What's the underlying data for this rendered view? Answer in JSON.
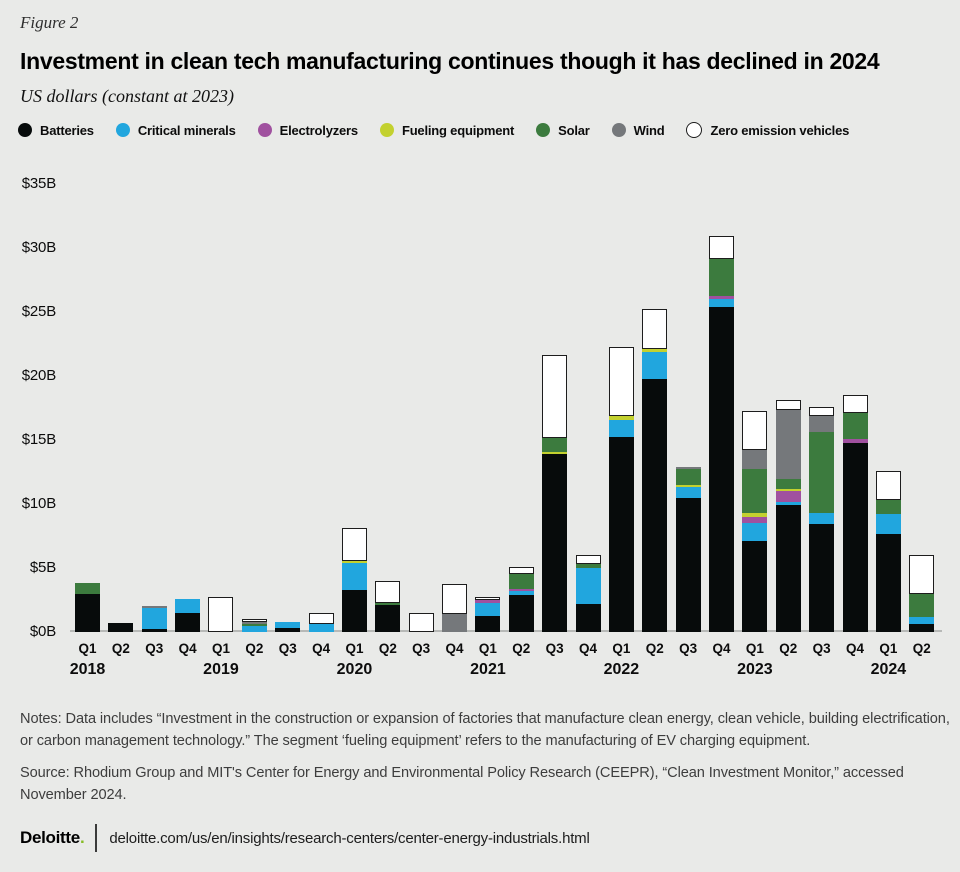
{
  "figure_label": "Figure 2",
  "title": "Investment in clean tech manufacturing continues though it has declined in 2024",
  "subtitle": "US dollars (constant at 2023)",
  "notes": "Notes: Data includes “Investment in the construction or expansion of factories that manufacture clean energy, clean vehicle, building electrification, or carbon management technology.” The segment ‘fueling equipment’ refers to the manufacturing of EV charging equipment.",
  "source": "Source: Rhodium Group and MIT's Center for Energy and Environmental Policy Research (CEEPR), “Clean Investment Monitor,” accessed November 2024.",
  "footer": {
    "brand": "Deloitte",
    "brand_dot": ".",
    "brand_dot_color": "#86bc25",
    "url": "deloitte.com/us/en/insights/research-centers/center-energy-industrials.html"
  },
  "colors": {
    "background": "#e9eae8",
    "axis_line": "#b7b9b7",
    "zev_outline": "#1d1d1d"
  },
  "chart_data": {
    "type": "stacked-bar",
    "unit": "USD billions (constant 2023)",
    "ylim": [
      0,
      35
    ],
    "grid": false,
    "legend_position": "top",
    "y_ticks": [
      {
        "label": "$35B",
        "value": 35
      },
      {
        "label": "$30B",
        "value": 30
      },
      {
        "label": "$25B",
        "value": 25
      },
      {
        "label": "$20B",
        "value": 20
      },
      {
        "label": "$15B",
        "value": 15
      },
      {
        "label": "$10B",
        "value": 10
      },
      {
        "label": "$5B",
        "value": 5
      },
      {
        "label": "$0B",
        "value": 0
      }
    ],
    "series": [
      {
        "key": "batteries",
        "name": "Batteries",
        "color": "#070b0b"
      },
      {
        "key": "critical_minerals",
        "name": "Critical minerals",
        "color": "#21a6de"
      },
      {
        "key": "electrolyzers",
        "name": "Electrolyzers",
        "color": "#a0519f"
      },
      {
        "key": "fueling_equipment",
        "name": "Fueling equipment",
        "color": "#c3d12f"
      },
      {
        "key": "solar",
        "name": "Solar",
        "color": "#3c7b3e"
      },
      {
        "key": "wind",
        "name": "Wind",
        "color": "#75787b"
      },
      {
        "key": "zev",
        "name": "Zero emission vehicles",
        "color": "#ffffff"
      }
    ],
    "quarters": [
      {
        "label": "Q1",
        "year": "2018",
        "values": {
          "batteries": 2.95,
          "solar": 0.9
        }
      },
      {
        "label": "Q2",
        "year": "2018",
        "values": {
          "batteries": 0.7
        }
      },
      {
        "label": "Q3",
        "year": "2018",
        "values": {
          "batteries": 0.2,
          "critical_minerals": 1.7,
          "wind": 0.15
        }
      },
      {
        "label": "Q4",
        "year": "2018",
        "values": {
          "batteries": 1.45,
          "critical_minerals": 1.1
        }
      },
      {
        "label": "Q1",
        "year": "2019",
        "values": {
          "zev": 2.75
        }
      },
      {
        "label": "Q2",
        "year": "2019",
        "values": {
          "critical_minerals": 0.5,
          "solar": 0.1,
          "wind": 0.15,
          "zev": 0.1
        }
      },
      {
        "label": "Q3",
        "year": "2019",
        "values": {
          "batteries": 0.3,
          "critical_minerals": 0.5
        }
      },
      {
        "label": "Q4",
        "year": "2019",
        "values": {
          "critical_minerals": 0.65,
          "zev": 0.85
        }
      },
      {
        "label": "Q1",
        "year": "2020",
        "values": {
          "batteries": 3.3,
          "critical_minerals": 2.1,
          "fueling_equipment": 0.15,
          "zev": 2.6
        }
      },
      {
        "label": "Q2",
        "year": "2020",
        "values": {
          "batteries": 2.1,
          "solar": 0.15,
          "zev": 1.7
        }
      },
      {
        "label": "Q3",
        "year": "2020",
        "values": {
          "zev": 1.5
        }
      },
      {
        "label": "Q4",
        "year": "2020",
        "values": {
          "wind": 1.4,
          "zev": 2.35
        }
      },
      {
        "label": "Q1",
        "year": "2021",
        "values": {
          "batteries": 1.25,
          "critical_minerals": 1.05,
          "electrolyzers": 0.2,
          "zev": 0.25
        }
      },
      {
        "label": "Q2",
        "year": "2021",
        "values": {
          "batteries": 2.9,
          "critical_minerals": 0.3,
          "electrolyzers": 0.2,
          "solar": 1.15,
          "zev": 0.5
        }
      },
      {
        "label": "Q3",
        "year": "2021",
        "values": {
          "batteries": 13.9,
          "fueling_equipment": 0.2,
          "solar": 1.05,
          "zev": 6.5
        }
      },
      {
        "label": "Q4",
        "year": "2021",
        "values": {
          "batteries": 2.2,
          "critical_minerals": 2.8,
          "solar": 0.35,
          "zev": 0.7
        }
      },
      {
        "label": "Q1",
        "year": "2022",
        "values": {
          "batteries": 15.2,
          "critical_minerals": 1.35,
          "fueling_equipment": 0.3,
          "zev": 5.4
        }
      },
      {
        "label": "Q2",
        "year": "2022",
        "values": {
          "batteries": 19.8,
          "critical_minerals": 2.1,
          "fueling_equipment": 0.2,
          "zev": 3.1
        }
      },
      {
        "label": "Q3",
        "year": "2022",
        "values": {
          "batteries": 10.5,
          "critical_minerals": 0.85,
          "fueling_equipment": 0.15,
          "solar": 1.2,
          "wind": 0.2
        }
      },
      {
        "label": "Q4",
        "year": "2022",
        "values": {
          "batteries": 25.4,
          "critical_minerals": 0.6,
          "electrolyzers": 0.25,
          "solar": 2.9,
          "zev": 1.8
        }
      },
      {
        "label": "Q1",
        "year": "2023",
        "values": {
          "batteries": 7.1,
          "critical_minerals": 1.4,
          "electrolyzers": 0.45,
          "fueling_equipment": 0.35,
          "solar": 3.4,
          "wind": 1.5,
          "zev": 3.1
        }
      },
      {
        "label": "Q2",
        "year": "2023",
        "values": {
          "batteries": 9.9,
          "critical_minerals": 0.25,
          "electrolyzers": 0.85,
          "fueling_equipment": 0.2,
          "solar": 0.75,
          "wind": 5.4,
          "zev": 0.8
        }
      },
      {
        "label": "Q3",
        "year": "2023",
        "values": {
          "batteries": 8.45,
          "critical_minerals": 0.85,
          "solar": 6.3,
          "wind": 1.25,
          "zev": 0.75
        }
      },
      {
        "label": "Q4",
        "year": "2023",
        "values": {
          "batteries": 14.8,
          "electrolyzers": 0.25,
          "solar": 2.05,
          "zev": 1.45
        }
      },
      {
        "label": "Q1",
        "year": "2024",
        "values": {
          "batteries": 7.65,
          "critical_minerals": 1.6,
          "solar": 1.1,
          "zev": 2.2
        }
      },
      {
        "label": "Q2",
        "year": "2024",
        "values": {
          "batteries": 0.6,
          "critical_minerals": 0.6,
          "solar": 1.8,
          "zev": 3.05
        }
      }
    ]
  }
}
